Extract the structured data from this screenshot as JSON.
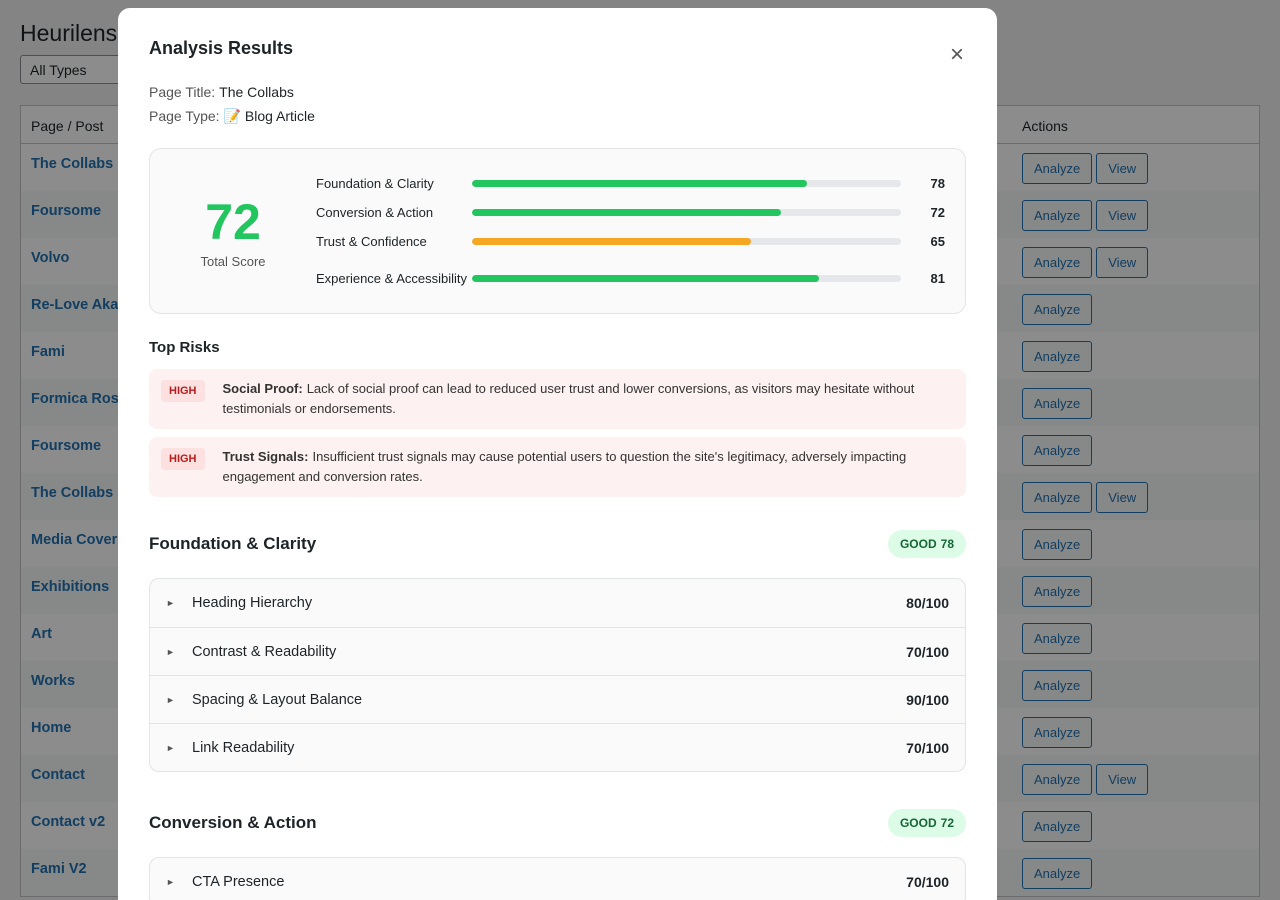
{
  "background": {
    "title": "Heurilens",
    "filter": "All Types",
    "table": {
      "headers": [
        "Page / Post",
        "Actions"
      ],
      "rows": [
        {
          "name": "The Collabs",
          "actions": [
            "Analyze",
            "View"
          ]
        },
        {
          "name": "Foursome",
          "actions": [
            "Analyze",
            "View"
          ]
        },
        {
          "name": "Volvo",
          "actions": [
            "Analyze",
            "View"
          ]
        },
        {
          "name": "Re-Love Aka",
          "actions": [
            "Analyze"
          ]
        },
        {
          "name": "Fami",
          "actions": [
            "Analyze"
          ]
        },
        {
          "name": "Formica Ros",
          "actions": [
            "Analyze"
          ]
        },
        {
          "name": "Foursome",
          "actions": [
            "Analyze"
          ]
        },
        {
          "name": "The Collabs",
          "actions": [
            "Analyze",
            "View"
          ]
        },
        {
          "name": "Media Cover",
          "actions": [
            "Analyze"
          ]
        },
        {
          "name": "Exhibitions",
          "actions": [
            "Analyze"
          ]
        },
        {
          "name": "Art",
          "actions": [
            "Analyze"
          ]
        },
        {
          "name": "Works",
          "actions": [
            "Analyze"
          ]
        },
        {
          "name": "Home",
          "actions": [
            "Analyze"
          ]
        },
        {
          "name": "Contact",
          "actions": [
            "Analyze",
            "View"
          ]
        },
        {
          "name": "Contact v2",
          "actions": [
            "Analyze"
          ]
        },
        {
          "name": "Fami V2",
          "actions": [
            "Analyze"
          ]
        }
      ]
    }
  },
  "modal": {
    "title": "Analysis Results",
    "close": "×",
    "meta": [
      {
        "label": "Page Title:",
        "value": "The Collabs"
      },
      {
        "label": "Page Type:",
        "value": "📝 Blog Article"
      }
    ],
    "score": {
      "total": 72,
      "label": "Total Score",
      "categories": [
        {
          "name": "Foundation & Clarity",
          "value": 78,
          "color": "#22c55e"
        },
        {
          "name": "Conversion & Action",
          "value": 72,
          "color": "#22c55e"
        },
        {
          "name": "Trust & Confidence",
          "value": 65,
          "color": "#f5a623"
        },
        {
          "name": "Experience & Accessibility",
          "value": 81,
          "color": "#22c55e"
        }
      ]
    },
    "risks_title": "Top Risks",
    "risks": [
      {
        "level": "HIGH",
        "title": "Social Proof:",
        "text": "Lack of social proof can lead to reduced user trust and lower conversions, as visitors may hesitate without testimonials or endorsements."
      },
      {
        "level": "HIGH",
        "title": "Trust Signals:",
        "text": "Insufficient trust signals may cause potential users to question the site's legitimacy, adversely impacting engagement and conversion rates."
      }
    ],
    "sections": [
      {
        "title": "Foundation & Clarity",
        "status": "GOOD",
        "score": 78,
        "items": [
          {
            "name": "Heading Hierarchy",
            "score": "80/100"
          },
          {
            "name": "Contrast & Readability",
            "score": "70/100"
          },
          {
            "name": "Spacing & Layout Balance",
            "score": "90/100"
          },
          {
            "name": "Link Readability",
            "score": "70/100"
          }
        ]
      },
      {
        "title": "Conversion & Action",
        "status": "GOOD",
        "score": 72,
        "items": [
          {
            "name": "CTA Presence",
            "score": "70/100"
          }
        ]
      }
    ]
  }
}
